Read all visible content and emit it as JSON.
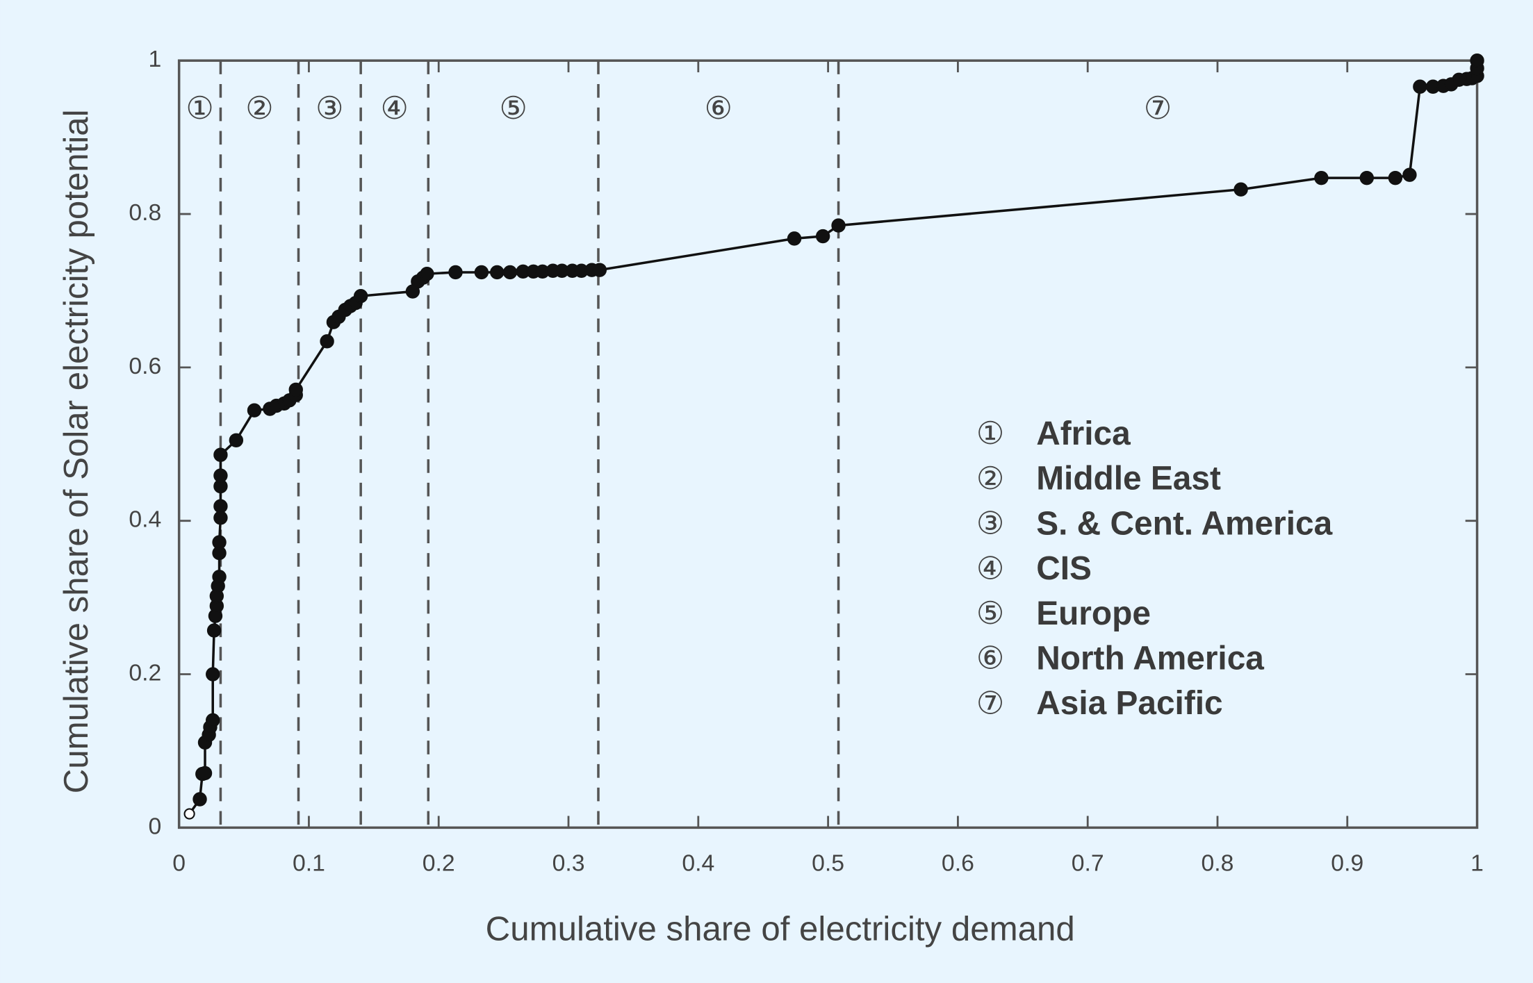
{
  "chart_data": {
    "type": "line",
    "x_label": "Cumulative share of electricity demand",
    "y_label": "Cumulative share of Solar electricity potential",
    "xlim": [
      0,
      1
    ],
    "ylim": [
      0,
      1
    ],
    "xticks": [
      0,
      0.1,
      0.2,
      0.3,
      0.4,
      0.5,
      0.6,
      0.7,
      0.8,
      0.9,
      1
    ],
    "yticks": [
      0,
      0.2,
      0.4,
      0.6,
      0.8,
      1
    ],
    "color": "#111111",
    "first_point_hollow": true,
    "x": [
      0.008,
      0.016,
      0.018,
      0.02,
      0.02,
      0.023,
      0.024,
      0.026,
      0.026,
      0.027,
      0.028,
      0.029,
      0.029,
      0.03,
      0.031,
      0.031,
      0.031,
      0.032,
      0.032,
      0.032,
      0.032,
      0.032,
      0.044,
      0.058,
      0.07,
      0.075,
      0.081,
      0.085,
      0.09,
      0.09,
      0.114,
      0.119,
      0.123,
      0.128,
      0.132,
      0.136,
      0.14,
      0.18,
      0.184,
      0.188,
      0.191,
      0.213,
      0.233,
      0.245,
      0.255,
      0.265,
      0.273,
      0.28,
      0.288,
      0.295,
      0.303,
      0.31,
      0.318,
      0.324,
      0.474,
      0.496,
      0.508,
      0.818,
      0.88,
      0.915,
      0.937,
      0.948,
      0.956,
      0.966,
      0.974,
      0.98,
      0.986,
      0.992,
      0.996,
      1,
      1,
      1
    ],
    "values": [
      0.018,
      0.037,
      0.07,
      0.071,
      0.111,
      0.121,
      0.131,
      0.14,
      0.2,
      0.257,
      0.276,
      0.289,
      0.302,
      0.315,
      0.327,
      0.358,
      0.372,
      0.404,
      0.419,
      0.445,
      0.459,
      0.486,
      0.505,
      0.544,
      0.546,
      0.55,
      0.553,
      0.557,
      0.564,
      0.571,
      0.634,
      0.659,
      0.666,
      0.675,
      0.68,
      0.684,
      0.693,
      0.699,
      0.712,
      0.717,
      0.722,
      0.724,
      0.724,
      0.724,
      0.724,
      0.725,
      0.725,
      0.725,
      0.726,
      0.726,
      0.726,
      0.726,
      0.727,
      0.727,
      0.768,
      0.771,
      0.785,
      0.832,
      0.847,
      0.847,
      0.847,
      0.851,
      0.966,
      0.966,
      0.967,
      0.969,
      0.975,
      0.976,
      0.977,
      0.98,
      0.99,
      1.0
    ],
    "dividers": [
      0.032,
      0.092,
      0.14,
      0.192,
      0.323,
      0.508
    ],
    "region_labels": [
      "①",
      "②",
      "③",
      "④",
      "⑤",
      "⑥",
      "⑦"
    ],
    "legend": [
      {
        "marker": "①",
        "label": "Africa"
      },
      {
        "marker": "②",
        "label": "Middle East"
      },
      {
        "marker": "③",
        "label": "S. & Cent. America"
      },
      {
        "marker": "④",
        "label": "CIS"
      },
      {
        "marker": "⑤",
        "label": "Europe"
      },
      {
        "marker": "⑥",
        "label": "North America"
      },
      {
        "marker": "⑦",
        "label": "Asia Pacific"
      }
    ]
  }
}
